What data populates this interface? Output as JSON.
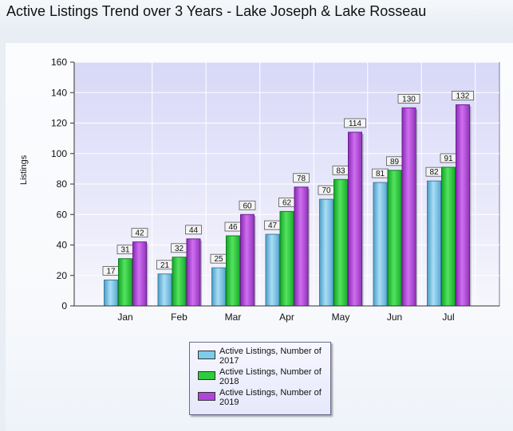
{
  "title": "Active Listings Trend over 3 Years - Lake Joseph & Lake Rosseau",
  "colors": {
    "series_2017": "#7fcbea",
    "series_2018": "#2ecc3e",
    "series_2019": "#b145d8"
  },
  "chart_data": {
    "type": "bar",
    "title": "Active Listings Trend over 3 Years - Lake Joseph & Lake Rosseau",
    "xlabel": "",
    "ylabel": "Listings",
    "ylim": [
      0,
      160
    ],
    "yticks": [
      "0",
      "20",
      "40",
      "60",
      "80",
      "100",
      "120",
      "140",
      "160"
    ],
    "grid": true,
    "legend_position": "bottom",
    "categories": [
      "Jan",
      "Feb",
      "Mar",
      "Apr",
      "May",
      "Jun",
      "Jul"
    ],
    "series": [
      {
        "name": "Active Listings, Number of 2017",
        "values": [
          17,
          21,
          25,
          47,
          70,
          81,
          82
        ]
      },
      {
        "name": "Active Listings, Number of 2018",
        "values": [
          31,
          32,
          46,
          62,
          83,
          89,
          91
        ]
      },
      {
        "name": "Active Listings, Number of 2019",
        "values": [
          42,
          44,
          60,
          78,
          114,
          130,
          132
        ]
      }
    ]
  }
}
